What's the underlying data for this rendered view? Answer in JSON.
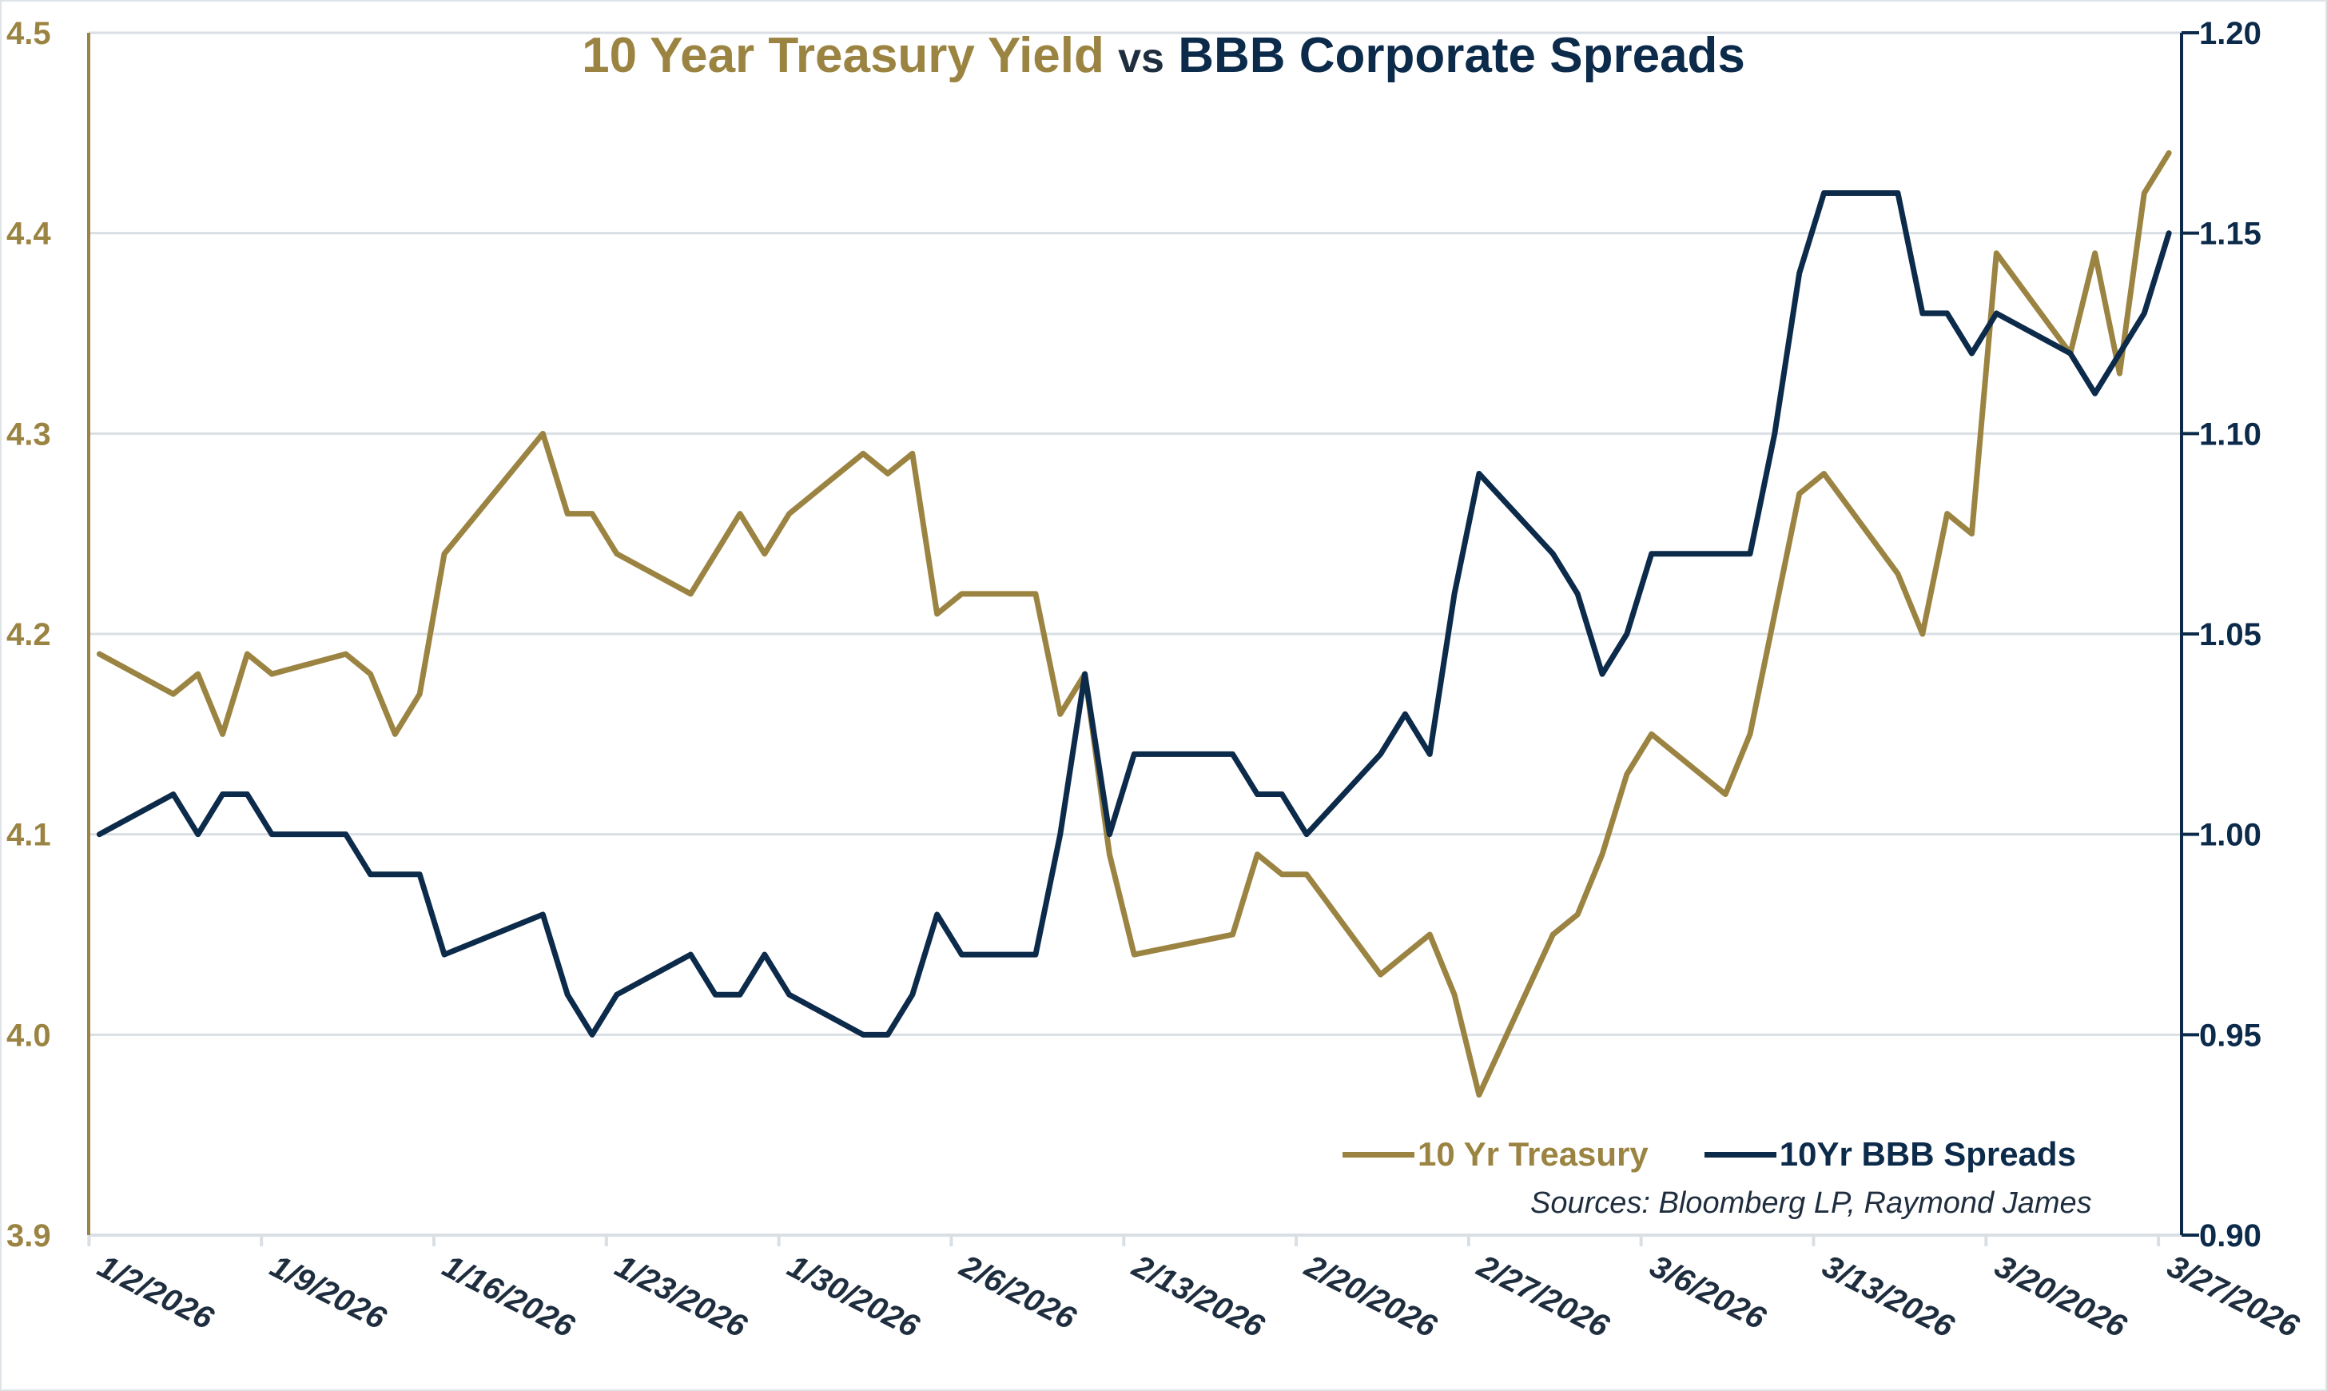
{
  "chart_data": {
    "type": "line",
    "title_parts": {
      "left": "10 Year Treasury Yield",
      "middle": "vs",
      "right": "BBB Corporate Spreads"
    },
    "x": [
      "1/2/2026",
      "1/5/2026",
      "1/6/2026",
      "1/7/2026",
      "1/8/2026",
      "1/9/2026",
      "1/12/2026",
      "1/13/2026",
      "1/14/2026",
      "1/15/2026",
      "1/16/2026",
      "1/20/2026",
      "1/21/2026",
      "1/22/2026",
      "1/23/2026",
      "1/26/2026",
      "1/27/2026",
      "1/28/2026",
      "1/29/2026",
      "1/30/2026",
      "2/2/2026",
      "2/3/2026",
      "2/4/2026",
      "2/5/2026",
      "2/6/2026",
      "2/9/2026",
      "2/10/2026",
      "2/11/2026",
      "2/12/2026",
      "2/13/2026",
      "2/17/2026",
      "2/18/2026",
      "2/19/2026",
      "2/20/2026",
      "2/23/2026",
      "2/24/2026",
      "2/25/2026",
      "2/26/2026",
      "2/27/2026",
      "3/2/2026",
      "3/3/2026",
      "3/4/2026",
      "3/5/2026",
      "3/6/2026",
      "3/9/2026",
      "3/10/2026",
      "3/11/2026",
      "3/12/2026",
      "3/13/2026",
      "3/16/2026",
      "3/17/2026",
      "3/18/2026",
      "3/19/2026",
      "3/20/2026",
      "3/23/2026",
      "3/24/2026",
      "3/25/2026",
      "3/26/2026",
      "3/27/2026"
    ],
    "series": [
      {
        "name": "10 Yr Treasury",
        "axis": "left",
        "color": "#9b8442",
        "values": [
          4.19,
          4.17,
          4.18,
          4.15,
          4.19,
          4.18,
          4.19,
          4.18,
          4.15,
          4.17,
          4.24,
          4.3,
          4.26,
          4.26,
          4.24,
          4.22,
          4.24,
          4.26,
          4.24,
          4.26,
          4.29,
          4.28,
          4.29,
          4.21,
          4.22,
          4.22,
          4.16,
          4.18,
          4.09,
          4.04,
          4.05,
          4.09,
          4.08,
          4.08,
          4.03,
          4.04,
          4.05,
          4.02,
          3.97,
          4.05,
          4.06,
          4.09,
          4.13,
          4.15,
          4.12,
          4.15,
          4.21,
          4.27,
          4.28,
          4.23,
          4.2,
          4.26,
          4.25,
          4.39,
          4.34,
          4.39,
          4.33,
          4.42,
          4.44
        ]
      },
      {
        "name": "10Yr BBB Spreads",
        "axis": "right",
        "color": "#0c2a4a",
        "values": [
          1.0,
          1.01,
          1.0,
          1.01,
          1.01,
          1.0,
          1.0,
          0.99,
          0.99,
          0.99,
          0.97,
          0.98,
          0.96,
          0.95,
          0.96,
          0.97,
          0.96,
          0.96,
          0.97,
          0.96,
          0.95,
          0.95,
          0.96,
          0.98,
          0.97,
          0.97,
          1.0,
          1.04,
          1.0,
          1.02,
          1.02,
          1.01,
          1.01,
          1.0,
          1.02,
          1.03,
          1.02,
          1.06,
          1.09,
          1.07,
          1.06,
          1.04,
          1.05,
          1.07,
          1.07,
          1.07,
          1.1,
          1.14,
          1.16,
          1.16,
          1.13,
          1.13,
          1.12,
          1.13,
          1.12,
          1.11,
          1.12,
          1.13,
          1.15
        ]
      }
    ],
    "x_tick_labels": [
      "1/2/2026",
      "1/9/2026",
      "1/16/2026",
      "1/23/2026",
      "1/30/2026",
      "2/6/2026",
      "2/13/2026",
      "2/20/2026",
      "2/27/2026",
      "3/6/2026",
      "3/13/2026",
      "3/20/2026",
      "3/27/2026"
    ],
    "left_axis": {
      "ylim": [
        3.9,
        4.5
      ],
      "ticks": [
        "3.9",
        "4.0",
        "4.1",
        "4.2",
        "4.3",
        "4.4",
        "4.5"
      ],
      "color": "#9b8442"
    },
    "right_axis": {
      "ylim": [
        0.9,
        1.2
      ],
      "ticks": [
        "0.90",
        "0.95",
        "1.00",
        "1.05",
        "1.10",
        "1.15",
        "1.20"
      ],
      "color": "#0c2a4a"
    },
    "grid": true,
    "legend_placement": "bottom-right",
    "source_note": "Sources: Bloomberg LP, Raymond James"
  }
}
